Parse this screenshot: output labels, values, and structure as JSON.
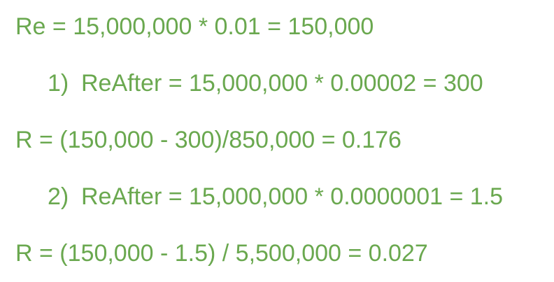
{
  "lines": [
    {
      "text": "Re = 15,000,000 * 0.01 = 150,000"
    },
    {
      "marker": "1)",
      "text": "ReAfter = 15,000,000 * 0.00002 = 300"
    },
    {
      "text": "R = (150,000 - 300)/850,000 = 0.176"
    },
    {
      "marker": "2)",
      "text": "ReAfter = 15,000,000 * 0.0000001 = 1.5"
    },
    {
      "text": "R = (150,000 - 1.5) / 5,500,000 = 0.027"
    }
  ],
  "colors": {
    "text": "#6aa84f",
    "background": "#ffffff"
  }
}
